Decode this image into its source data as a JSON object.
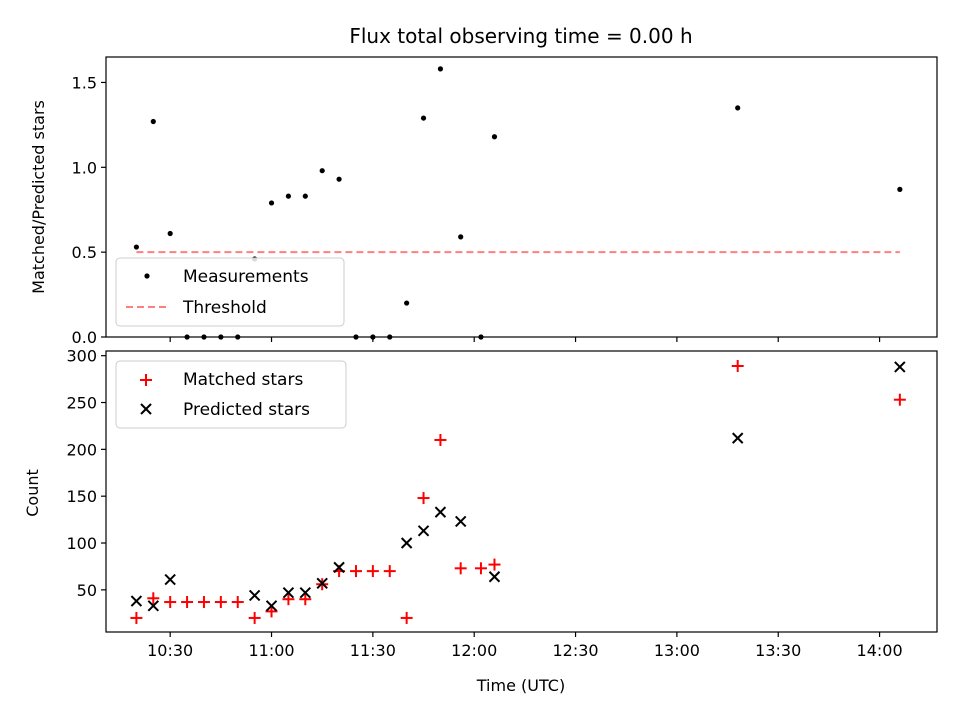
{
  "chart_data": [
    {
      "type": "scatter",
      "title": "Flux total observing time = 0.00 h",
      "xlabel": "",
      "ylabel": "Matched/Predicted stars",
      "ylim": [
        0,
        1.65
      ],
      "yticks": [
        "0.0",
        "0.5",
        "1.0",
        "1.5"
      ],
      "grid": false,
      "legend_position": "bottom-left",
      "series": [
        {
          "name": "Measurements",
          "marker": "dot",
          "color": "#000000",
          "points": [
            [
              "10:20",
              0.53
            ],
            [
              "10:25",
              1.27
            ],
            [
              "10:30",
              0.61
            ],
            [
              "10:35",
              0.0
            ],
            [
              "10:40",
              0.0
            ],
            [
              "10:45",
              0.0
            ],
            [
              "10:50",
              0.0
            ],
            [
              "10:55",
              0.46
            ],
            [
              "11:00",
              0.79
            ],
            [
              "11:05",
              0.83
            ],
            [
              "11:10",
              0.83
            ],
            [
              "11:15",
              0.98
            ],
            [
              "11:20",
              0.93
            ],
            [
              "11:25",
              0.0
            ],
            [
              "11:30",
              0.0
            ],
            [
              "11:35",
              0.0
            ],
            [
              "11:40",
              0.2
            ],
            [
              "11:45",
              1.29
            ],
            [
              "11:50",
              1.58
            ],
            [
              "11:56",
              0.59
            ],
            [
              "12:02",
              0.0
            ],
            [
              "12:06",
              1.18
            ],
            [
              "13:18",
              1.35
            ],
            [
              "14:06",
              0.87
            ]
          ]
        },
        {
          "name": "Threshold",
          "marker": "dashed-line",
          "color": "#ff7f7f",
          "points": [
            [
              "10:20",
              0.5
            ],
            [
              "14:06",
              0.5
            ]
          ]
        }
      ]
    },
    {
      "type": "scatter",
      "title": "",
      "xlabel": "Time (UTC)",
      "ylabel": "Count",
      "ylim": [
        5,
        305
      ],
      "yticks": [
        "50",
        "100",
        "150",
        "200",
        "250",
        "300"
      ],
      "xticks": [
        "10:30",
        "11:00",
        "11:30",
        "12:00",
        "12:30",
        "13:00",
        "13:30",
        "14:00"
      ],
      "xlim": [
        "10:11",
        "14:17"
      ],
      "grid": false,
      "legend_position": "top-left",
      "series": [
        {
          "name": "Matched stars",
          "marker": "plus",
          "color": "#ff0000",
          "points": [
            [
              "10:20",
              20
            ],
            [
              "10:25",
              41
            ],
            [
              "10:30",
              37
            ],
            [
              "10:35",
              37
            ],
            [
              "10:40",
              37
            ],
            [
              "10:45",
              37
            ],
            [
              "10:50",
              37
            ],
            [
              "10:55",
              20
            ],
            [
              "11:00",
              27
            ],
            [
              "11:05",
              40
            ],
            [
              "11:10",
              40
            ],
            [
              "11:15",
              56
            ],
            [
              "11:20",
              70
            ],
            [
              "11:25",
              70
            ],
            [
              "11:30",
              70
            ],
            [
              "11:35",
              70
            ],
            [
              "11:40",
              20
            ],
            [
              "11:45",
              148
            ],
            [
              "11:50",
              210
            ],
            [
              "11:56",
              73
            ],
            [
              "12:02",
              73
            ],
            [
              "12:06",
              77
            ],
            [
              "13:18",
              289
            ],
            [
              "14:06",
              253
            ]
          ]
        },
        {
          "name": "Predicted stars",
          "marker": "x",
          "color": "#000000",
          "points": [
            [
              "10:20",
              38
            ],
            [
              "10:25",
              33
            ],
            [
              "10:30",
              61
            ],
            [
              "10:55",
              44
            ],
            [
              "11:00",
              33
            ],
            [
              "11:05",
              47
            ],
            [
              "11:10",
              47
            ],
            [
              "11:15",
              57
            ],
            [
              "11:20",
              74
            ],
            [
              "11:40",
              100
            ],
            [
              "11:45",
              113
            ],
            [
              "11:50",
              133
            ],
            [
              "11:56",
              123
            ],
            [
              "12:06",
              64
            ],
            [
              "13:18",
              212
            ],
            [
              "14:06",
              288
            ]
          ]
        }
      ]
    }
  ]
}
